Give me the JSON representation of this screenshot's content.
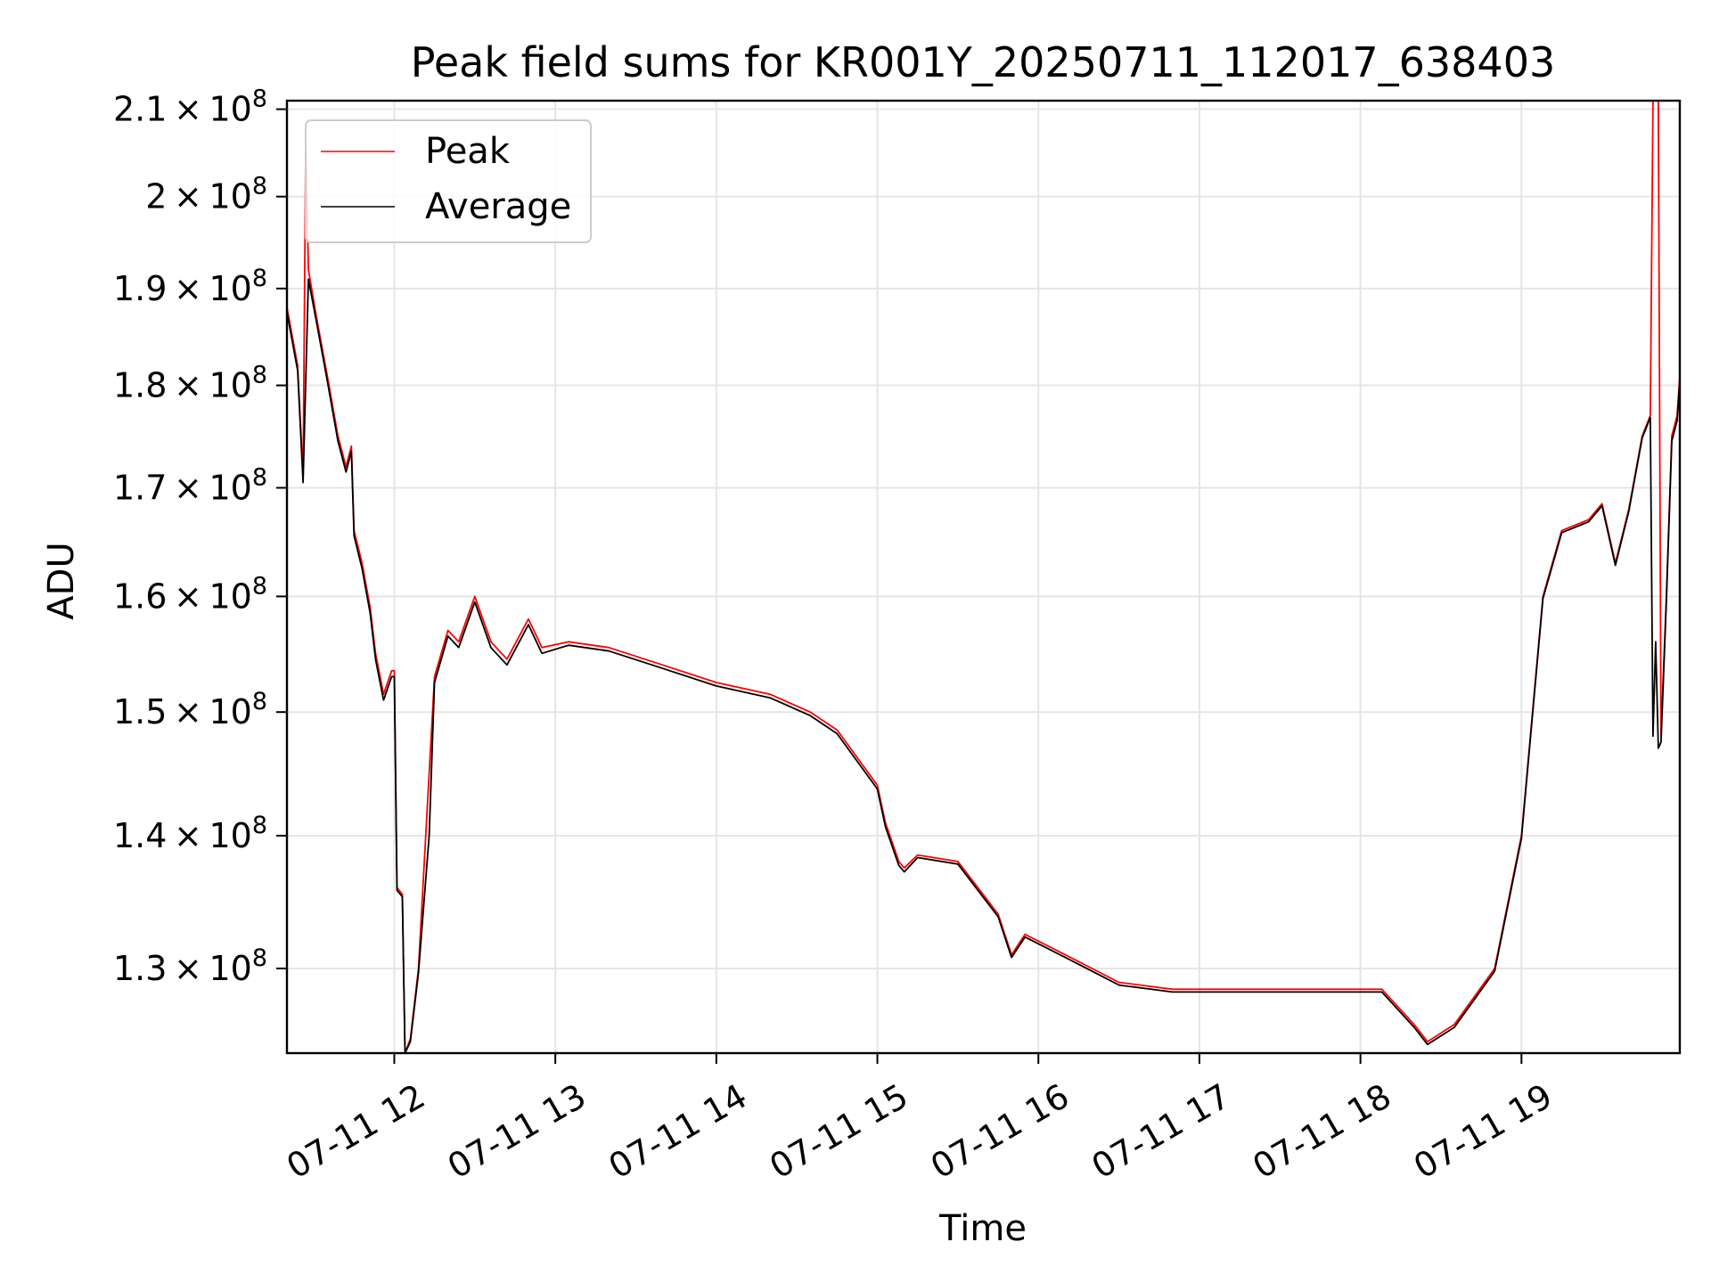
{
  "chart_data": {
    "type": "line",
    "title": "Peak field sums for KR001Y_20250711_112017_638403",
    "xlabel": "Time",
    "ylabel": "ADU",
    "y_scale": "log",
    "grid": true,
    "legend_position": "upper left",
    "xlim": [
      "07-11 11:20",
      "07-11 19:59"
    ],
    "ylim": [
      124000000,
      211000000
    ],
    "x_ticks": [
      {
        "value": "07-11 12:00",
        "label": "07-11 12"
      },
      {
        "value": "07-11 13:00",
        "label": "07-11 13"
      },
      {
        "value": "07-11 14:00",
        "label": "07-11 14"
      },
      {
        "value": "07-11 15:00",
        "label": "07-11 15"
      },
      {
        "value": "07-11 16:00",
        "label": "07-11 16"
      },
      {
        "value": "07-11 17:00",
        "label": "07-11 17"
      },
      {
        "value": "07-11 18:00",
        "label": "07-11 18"
      },
      {
        "value": "07-11 19:00",
        "label": "07-11 19"
      }
    ],
    "y_ticks": [
      {
        "value": 130000000,
        "mantissa": "1.3",
        "exp": "8"
      },
      {
        "value": 140000000,
        "mantissa": "1.4",
        "exp": "8"
      },
      {
        "value": 150000000,
        "mantissa": "1.5",
        "exp": "8"
      },
      {
        "value": 160000000,
        "mantissa": "1.6",
        "exp": "8"
      },
      {
        "value": 170000000,
        "mantissa": "1.7",
        "exp": "8"
      },
      {
        "value": 180000000,
        "mantissa": "1.8",
        "exp": "8"
      },
      {
        "value": 190000000,
        "mantissa": "1.9",
        "exp": "8"
      },
      {
        "value": 200000000,
        "mantissa": "2",
        "exp": "8"
      },
      {
        "value": 210000000,
        "mantissa": "2.1",
        "exp": "8"
      }
    ],
    "series": [
      {
        "name": "Peak",
        "color": "#ff0000",
        "points": [
          [
            "07-11 11:20",
            188000000
          ],
          [
            "07-11 11:24",
            182000000
          ],
          [
            "07-11 11:26",
            171000000
          ],
          [
            "07-11 11:27",
            206000000
          ],
          [
            "07-11 11:28",
            192000000
          ],
          [
            "07-11 11:31",
            187000000
          ],
          [
            "07-11 11:35",
            181000000
          ],
          [
            "07-11 11:39",
            175000000
          ],
          [
            "07-11 11:42",
            172000000
          ],
          [
            "07-11 11:44",
            174000000
          ],
          [
            "07-11 11:45",
            166000000
          ],
          [
            "07-11 11:48",
            163000000
          ],
          [
            "07-11 11:51",
            159000000
          ],
          [
            "07-11 11:53",
            155000000
          ],
          [
            "07-11 11:56",
            151500000
          ],
          [
            "07-11 11:59",
            153500000
          ],
          [
            "07-11 12:00",
            153500000
          ],
          [
            "07-11 12:01",
            136000000
          ],
          [
            "07-11 12:03",
            135500000
          ],
          [
            "07-11 12:04",
            124000000
          ],
          [
            "07-11 12:06",
            125000000
          ],
          [
            "07-11 12:09",
            130000000
          ],
          [
            "07-11 12:13",
            145000000
          ],
          [
            "07-11 12:15",
            153000000
          ],
          [
            "07-11 12:20",
            157000000
          ],
          [
            "07-11 12:24",
            156000000
          ],
          [
            "07-11 12:30",
            160000000
          ],
          [
            "07-11 12:36",
            156000000
          ],
          [
            "07-11 12:42",
            154500000
          ],
          [
            "07-11 12:50",
            158000000
          ],
          [
            "07-11 12:55",
            155500000
          ],
          [
            "07-11 13:05",
            156000000
          ],
          [
            "07-11 13:20",
            155500000
          ],
          [
            "07-11 13:40",
            154000000
          ],
          [
            "07-11 14:00",
            152500000
          ],
          [
            "07-11 14:20",
            151500000
          ],
          [
            "07-11 14:35",
            150000000
          ],
          [
            "07-11 14:45",
            148500000
          ],
          [
            "07-11 15:00",
            144000000
          ],
          [
            "07-11 15:03",
            141000000
          ],
          [
            "07-11 15:08",
            138000000
          ],
          [
            "07-11 15:10",
            137500000
          ],
          [
            "07-11 15:15",
            138500000
          ],
          [
            "07-11 15:30",
            138000000
          ],
          [
            "07-11 15:45",
            134000000
          ],
          [
            "07-11 15:50",
            131000000
          ],
          [
            "07-11 15:55",
            132500000
          ],
          [
            "07-11 16:10",
            131000000
          ],
          [
            "07-11 16:30",
            129000000
          ],
          [
            "07-11 16:50",
            128500000
          ],
          [
            "07-11 17:15",
            128500000
          ],
          [
            "07-11 17:35",
            128500000
          ],
          [
            "07-11 18:00",
            128500000
          ],
          [
            "07-11 18:08",
            128500000
          ],
          [
            "07-11 18:20",
            126000000
          ],
          [
            "07-11 18:25",
            124800000
          ],
          [
            "07-11 18:35",
            126000000
          ],
          [
            "07-11 18:50",
            130000000
          ],
          [
            "07-11 19:00",
            140000000
          ],
          [
            "07-11 19:08",
            160000000
          ],
          [
            "07-11 19:15",
            166000000
          ],
          [
            "07-11 19:25",
            167000000
          ],
          [
            "07-11 19:30",
            168500000
          ],
          [
            "07-11 19:35",
            163000000
          ],
          [
            "07-11 19:40",
            168000000
          ],
          [
            "07-11 19:45",
            175000000
          ],
          [
            "07-11 19:48",
            177000000
          ],
          [
            "07-11 19:49",
            211000000
          ],
          [
            "07-11 19:50",
            211000000
          ],
          [
            "07-11 19:51",
            211000000
          ],
          [
            "07-11 19:52",
            148000000
          ],
          [
            "07-11 19:54",
            160000000
          ],
          [
            "07-11 19:56",
            175000000
          ],
          [
            "07-11 19:58",
            177000000
          ],
          [
            "07-11 19:59",
            181000000
          ]
        ]
      },
      {
        "name": "Average",
        "color": "#000000",
        "points": [
          [
            "07-11 11:20",
            187500000
          ],
          [
            "07-11 11:24",
            181500000
          ],
          [
            "07-11 11:26",
            170500000
          ],
          [
            "07-11 11:28",
            191000000
          ],
          [
            "07-11 11:31",
            186500000
          ],
          [
            "07-11 11:35",
            180500000
          ],
          [
            "07-11 11:39",
            174500000
          ],
          [
            "07-11 11:42",
            171500000
          ],
          [
            "07-11 11:44",
            173500000
          ],
          [
            "07-11 11:45",
            165500000
          ],
          [
            "07-11 11:48",
            162500000
          ],
          [
            "07-11 11:51",
            158500000
          ],
          [
            "07-11 11:53",
            154500000
          ],
          [
            "07-11 11:56",
            151000000
          ],
          [
            "07-11 11:59",
            153000000
          ],
          [
            "07-11 12:00",
            153000000
          ],
          [
            "07-11 12:01",
            135800000
          ],
          [
            "07-11 12:03",
            135300000
          ],
          [
            "07-11 12:04",
            124000000
          ],
          [
            "07-11 12:06",
            124800000
          ],
          [
            "07-11 12:09",
            129700000
          ],
          [
            "07-11 12:13",
            140000000
          ],
          [
            "07-11 12:15",
            152500000
          ],
          [
            "07-11 12:20",
            156500000
          ],
          [
            "07-11 12:24",
            155500000
          ],
          [
            "07-11 12:30",
            159500000
          ],
          [
            "07-11 12:36",
            155500000
          ],
          [
            "07-11 12:42",
            154000000
          ],
          [
            "07-11 12:50",
            157500000
          ],
          [
            "07-11 12:55",
            155000000
          ],
          [
            "07-11 13:05",
            155700000
          ],
          [
            "07-11 13:20",
            155200000
          ],
          [
            "07-11 13:40",
            153700000
          ],
          [
            "07-11 14:00",
            152200000
          ],
          [
            "07-11 14:20",
            151200000
          ],
          [
            "07-11 14:35",
            149700000
          ],
          [
            "07-11 14:45",
            148200000
          ],
          [
            "07-11 15:00",
            143700000
          ],
          [
            "07-11 15:03",
            140700000
          ],
          [
            "07-11 15:08",
            137700000
          ],
          [
            "07-11 15:10",
            137200000
          ],
          [
            "07-11 15:15",
            138300000
          ],
          [
            "07-11 15:30",
            137800000
          ],
          [
            "07-11 15:45",
            133800000
          ],
          [
            "07-11 15:50",
            130800000
          ],
          [
            "07-11 15:55",
            132300000
          ],
          [
            "07-11 16:10",
            130800000
          ],
          [
            "07-11 16:30",
            128800000
          ],
          [
            "07-11 16:50",
            128300000
          ],
          [
            "07-11 17:15",
            128300000
          ],
          [
            "07-11 17:35",
            128300000
          ],
          [
            "07-11 18:00",
            128300000
          ],
          [
            "07-11 18:08",
            128300000
          ],
          [
            "07-11 18:20",
            125800000
          ],
          [
            "07-11 18:25",
            124600000
          ],
          [
            "07-11 18:35",
            125800000
          ],
          [
            "07-11 18:50",
            129800000
          ],
          [
            "07-11 19:00",
            139800000
          ],
          [
            "07-11 19:08",
            159800000
          ],
          [
            "07-11 19:15",
            165800000
          ],
          [
            "07-11 19:25",
            166800000
          ],
          [
            "07-11 19:30",
            168300000
          ],
          [
            "07-11 19:35",
            162800000
          ],
          [
            "07-11 19:40",
            167800000
          ],
          [
            "07-11 19:45",
            174800000
          ],
          [
            "07-11 19:48",
            176800000
          ],
          [
            "07-11 19:49",
            148000000
          ],
          [
            "07-11 19:50",
            156000000
          ],
          [
            "07-11 19:51",
            147000000
          ],
          [
            "07-11 19:52",
            147500000
          ],
          [
            "07-11 19:54",
            159500000
          ],
          [
            "07-11 19:56",
            174500000
          ],
          [
            "07-11 19:58",
            176500000
          ],
          [
            "07-11 19:59",
            180500000
          ]
        ]
      }
    ]
  }
}
